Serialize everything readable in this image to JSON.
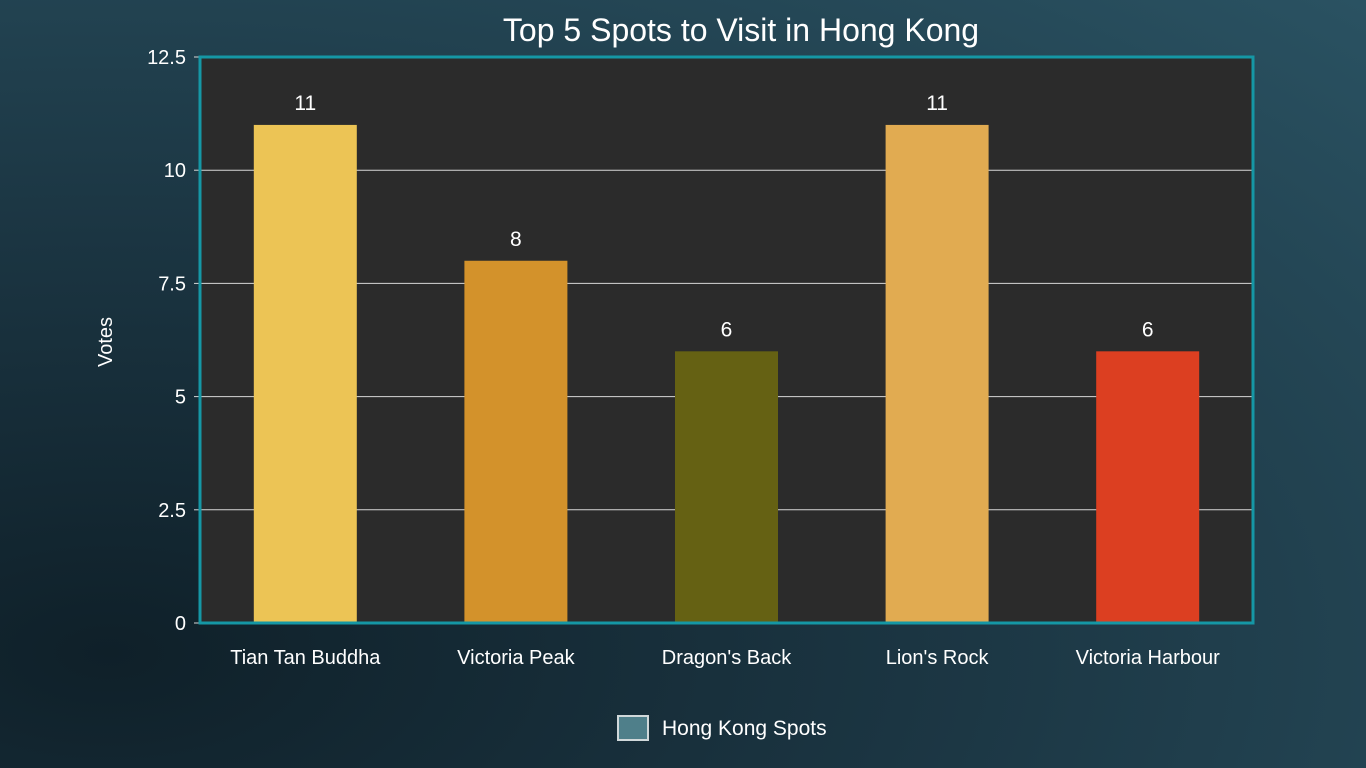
{
  "chart_data": {
    "type": "bar",
    "title": "Top 5 Spots to Visit in Hong Kong",
    "xlabel": "",
    "ylabel": "Votes",
    "ylim": [
      0,
      12.5
    ],
    "yticks": [
      "0",
      "2.5",
      "5",
      "7.5",
      "10",
      "12.5"
    ],
    "ytick_values": [
      0,
      2.5,
      5,
      7.5,
      10,
      12.5
    ],
    "grid": true,
    "legend_position": "bottom",
    "categories": [
      "Tian Tan Buddha",
      "Victoria Peak",
      "Dragon's Back",
      "Lion's Rock",
      "Victoria Harbour"
    ],
    "values": [
      11,
      8,
      6,
      11,
      6
    ],
    "value_labels": [
      "11",
      "8",
      "6",
      "11",
      "6"
    ],
    "series": [
      {
        "name": "Hong Kong Spots",
        "values": [
          11,
          8,
          6,
          11,
          6
        ]
      }
    ],
    "colors": [
      "#ecc455",
      "#d3922b",
      "#656113",
      "#e1ab51",
      "#dc3f21"
    ],
    "legend_color": "#4f7f8a",
    "plot_background": "#2b2b2b",
    "plot_border_color": "#1597a5",
    "grid_color": "#d8d8d8"
  }
}
